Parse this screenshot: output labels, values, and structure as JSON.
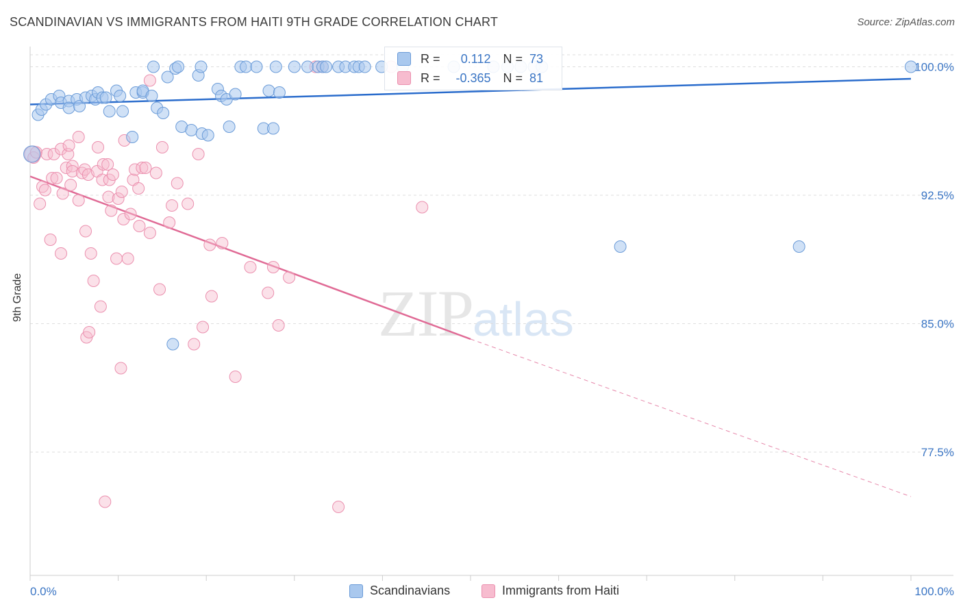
{
  "title": "SCANDINAVIAN VS IMMIGRANTS FROM HAITI 9TH GRADE CORRELATION CHART",
  "source": "Source: ZipAtlas.com",
  "watermark_zip": "ZIP",
  "watermark_atlas": "atlas",
  "stats": {
    "row1": {
      "r_label": "R =",
      "r_value": " 0.112",
      "n_label": "N =",
      "n_value": "73"
    },
    "row2": {
      "r_label": "R =",
      "r_value": "-0.365",
      "n_label": "N =",
      "n_value": "81"
    }
  },
  "chart_data": {
    "type": "scatter",
    "title": "SCANDINAVIAN VS IMMIGRANTS FROM HAITI 9TH GRADE CORRELATION CHART",
    "xlabel": "",
    "ylabel": "9th Grade",
    "x_tick_labels": [
      "0.0%",
      "100.0%"
    ],
    "y_tick_labels": [
      "100.0%",
      "92.5%",
      "85.0%",
      "77.5%"
    ],
    "y_ticks": [
      100.0,
      92.5,
      85.0,
      77.5
    ],
    "xlim": [
      0,
      100
    ],
    "ylim": [
      70.3,
      101.1
    ],
    "grid": true,
    "legend": "bottom",
    "colors": {
      "scandinavians": "#a9c8ee",
      "scandinavians_stroke": "#6a9bd8",
      "scandinavians_line": "#2a6ccc",
      "haiti": "#f7bccf",
      "haiti_stroke": "#eb8fae",
      "haiti_line": "#e06a95",
      "tick_text": "#3a75c4"
    },
    "series": [
      {
        "name": "Scandinavians",
        "r": 0.112,
        "n": 73,
        "trend": {
          "x0": 0,
          "y0": 97.8,
          "x1": 100,
          "y1": 99.3
        },
        "points": [
          [
            0.2,
            94.9
          ],
          [
            0.9,
            97.2
          ],
          [
            1.3,
            97.5
          ],
          [
            1.8,
            97.8
          ],
          [
            2.4,
            98.1
          ],
          [
            3.3,
            98.3
          ],
          [
            3.5,
            97.9
          ],
          [
            4.4,
            98.0
          ],
          [
            4.4,
            97.6
          ],
          [
            5.3,
            98.1
          ],
          [
            5.6,
            97.7
          ],
          [
            6.3,
            98.2
          ],
          [
            7.0,
            98.3
          ],
          [
            7.4,
            98.1
          ],
          [
            7.7,
            98.5
          ],
          [
            8.2,
            98.2
          ],
          [
            8.6,
            98.2
          ],
          [
            9.0,
            97.4
          ],
          [
            9.8,
            98.6
          ],
          [
            10.2,
            98.3
          ],
          [
            10.5,
            97.4
          ],
          [
            11.6,
            95.9
          ],
          [
            12.0,
            98.5
          ],
          [
            12.8,
            98.5
          ],
          [
            12.8,
            98.6
          ],
          [
            13.8,
            98.3
          ],
          [
            14.4,
            97.6
          ],
          [
            15.1,
            97.3
          ],
          [
            15.6,
            99.4
          ],
          [
            16.5,
            99.9
          ],
          [
            17.2,
            96.5
          ],
          [
            18.3,
            96.3
          ],
          [
            19.1,
            99.5
          ],
          [
            19.5,
            96.1
          ],
          [
            20.2,
            96.0
          ],
          [
            21.3,
            98.7
          ],
          [
            21.7,
            98.3
          ],
          [
            22.3,
            98.1
          ],
          [
            22.6,
            96.5
          ],
          [
            23.3,
            98.4
          ],
          [
            14.0,
            100.0
          ],
          [
            16.8,
            100.0
          ],
          [
            19.4,
            100.0
          ],
          [
            23.9,
            100.0
          ],
          [
            24.5,
            100.0
          ],
          [
            25.7,
            100.0
          ],
          [
            26.5,
            96.4
          ],
          [
            27.1,
            98.6
          ],
          [
            27.6,
            96.4
          ],
          [
            28.3,
            98.5
          ],
          [
            27.9,
            100.0
          ],
          [
            30.0,
            100.0
          ],
          [
            31.5,
            100.0
          ],
          [
            32.7,
            100.0
          ],
          [
            33.2,
            100.0
          ],
          [
            33.6,
            100.0
          ],
          [
            35.0,
            100.0
          ],
          [
            35.8,
            100.0
          ],
          [
            36.8,
            100.0
          ],
          [
            37.3,
            100.0
          ],
          [
            38.0,
            100.0
          ],
          [
            39.9,
            100.0
          ],
          [
            42.3,
            100.0
          ],
          [
            48.1,
            100.0
          ],
          [
            52.6,
            100.0
          ],
          [
            54.2,
            100.0
          ],
          [
            55.7,
            100.0
          ],
          [
            57.2,
            100.0
          ],
          [
            67.0,
            89.5
          ],
          [
            87.3,
            89.5
          ],
          [
            16.2,
            83.8
          ],
          [
            58.1,
            100.0
          ],
          [
            100.0,
            100.0
          ]
        ]
      },
      {
        "name": "Immigrants from Haiti",
        "r": -0.365,
        "n": 81,
        "trend": {
          "x0": 0,
          "y0": 93.6,
          "x1": 50,
          "y1": 84.1,
          "dash_x1": 100,
          "dash_y1": 74.9
        },
        "points": [
          [
            0.3,
            94.9
          ],
          [
            0.4,
            94.7
          ],
          [
            0.7,
            95.0
          ],
          [
            1.1,
            92.0
          ],
          [
            1.4,
            93.0
          ],
          [
            1.7,
            92.8
          ],
          [
            1.9,
            94.9
          ],
          [
            2.3,
            89.9
          ],
          [
            2.5,
            93.5
          ],
          [
            2.7,
            94.9
          ],
          [
            3.0,
            93.5
          ],
          [
            3.5,
            95.2
          ],
          [
            3.5,
            89.1
          ],
          [
            3.7,
            92.6
          ],
          [
            4.1,
            94.1
          ],
          [
            4.3,
            94.9
          ],
          [
            4.4,
            95.4
          ],
          [
            4.6,
            93.1
          ],
          [
            4.8,
            94.2
          ],
          [
            4.8,
            93.9
          ],
          [
            5.5,
            92.2
          ],
          [
            5.5,
            95.9
          ],
          [
            5.9,
            93.8
          ],
          [
            6.2,
            94.0
          ],
          [
            6.3,
            90.4
          ],
          [
            6.4,
            84.2
          ],
          [
            6.6,
            93.7
          ],
          [
            6.7,
            84.5
          ],
          [
            6.9,
            89.1
          ],
          [
            7.2,
            87.5
          ],
          [
            7.6,
            93.9
          ],
          [
            7.7,
            95.3
          ],
          [
            8.0,
            86.0
          ],
          [
            8.2,
            93.4
          ],
          [
            8.3,
            94.3
          ],
          [
            8.5,
            74.6
          ],
          [
            8.8,
            94.3
          ],
          [
            8.9,
            92.4
          ],
          [
            9.0,
            93.4
          ],
          [
            9.2,
            91.6
          ],
          [
            9.4,
            93.7
          ],
          [
            9.8,
            88.8
          ],
          [
            10.0,
            92.3
          ],
          [
            10.3,
            82.4
          ],
          [
            10.4,
            92.7
          ],
          [
            10.6,
            91.1
          ],
          [
            10.7,
            95.7
          ],
          [
            11.1,
            88.8
          ],
          [
            11.4,
            91.4
          ],
          [
            11.7,
            93.4
          ],
          [
            11.9,
            94.0
          ],
          [
            12.3,
            92.9
          ],
          [
            12.4,
            90.7
          ],
          [
            12.7,
            94.1
          ],
          [
            13.1,
            94.1
          ],
          [
            13.6,
            99.2
          ],
          [
            13.6,
            90.3
          ],
          [
            14.3,
            93.8
          ],
          [
            14.7,
            87.0
          ],
          [
            15.0,
            95.3
          ],
          [
            15.8,
            90.9
          ],
          [
            16.1,
            91.9
          ],
          [
            16.7,
            93.2
          ],
          [
            17.9,
            92.0
          ],
          [
            18.6,
            83.8
          ],
          [
            19.1,
            94.9
          ],
          [
            19.6,
            84.8
          ],
          [
            20.4,
            89.6
          ],
          [
            20.6,
            86.6
          ],
          [
            21.8,
            89.7
          ],
          [
            23.3,
            81.9
          ],
          [
            25.0,
            88.3
          ],
          [
            27.0,
            86.8
          ],
          [
            27.6,
            88.3
          ],
          [
            28.2,
            84.9
          ],
          [
            29.4,
            87.7
          ],
          [
            32.4,
            100.0
          ],
          [
            35.0,
            74.3
          ],
          [
            44.5,
            91.8
          ],
          [
            41.0,
            100.0
          ],
          [
            33.2,
            100.0
          ]
        ]
      }
    ]
  },
  "legend": {
    "item1": "Scandinavians",
    "item2": "Immigrants from Haiti"
  }
}
